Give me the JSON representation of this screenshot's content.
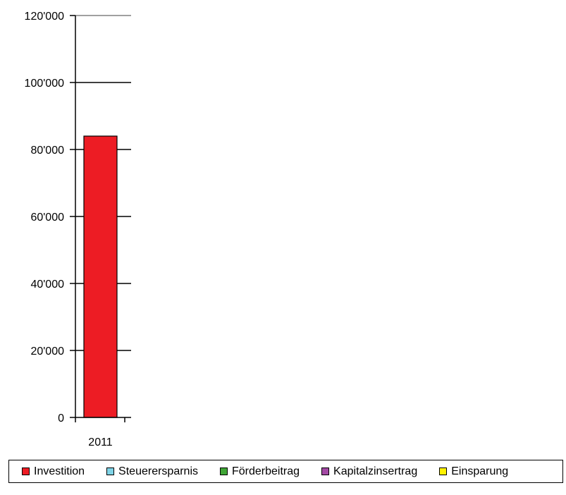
{
  "chart_data": {
    "type": "bar",
    "categories": [
      "2011"
    ],
    "series": [
      {
        "name": "Investition",
        "color": "#ed1c24",
        "values": [
          84000
        ]
      },
      {
        "name": "Steuerersparnis",
        "color": "#7fd3e6",
        "values": [
          0
        ]
      },
      {
        "name": "Förderbeitrag",
        "color": "#3fa535",
        "values": [
          0
        ]
      },
      {
        "name": "Kapitalzinsertrag",
        "color": "#a349a4",
        "values": [
          0
        ]
      },
      {
        "name": "Einsparung",
        "color": "#fff200",
        "values": [
          0
        ]
      }
    ],
    "ylim": [
      0,
      120000
    ],
    "yticks": [
      0,
      20000,
      40000,
      60000,
      80000,
      100000,
      120000
    ],
    "ytick_labels": [
      "0",
      "20'000",
      "40'000",
      "60'000",
      "80'000",
      "100'000",
      "120'000"
    ],
    "grid": true,
    "legend_position": "bottom"
  }
}
